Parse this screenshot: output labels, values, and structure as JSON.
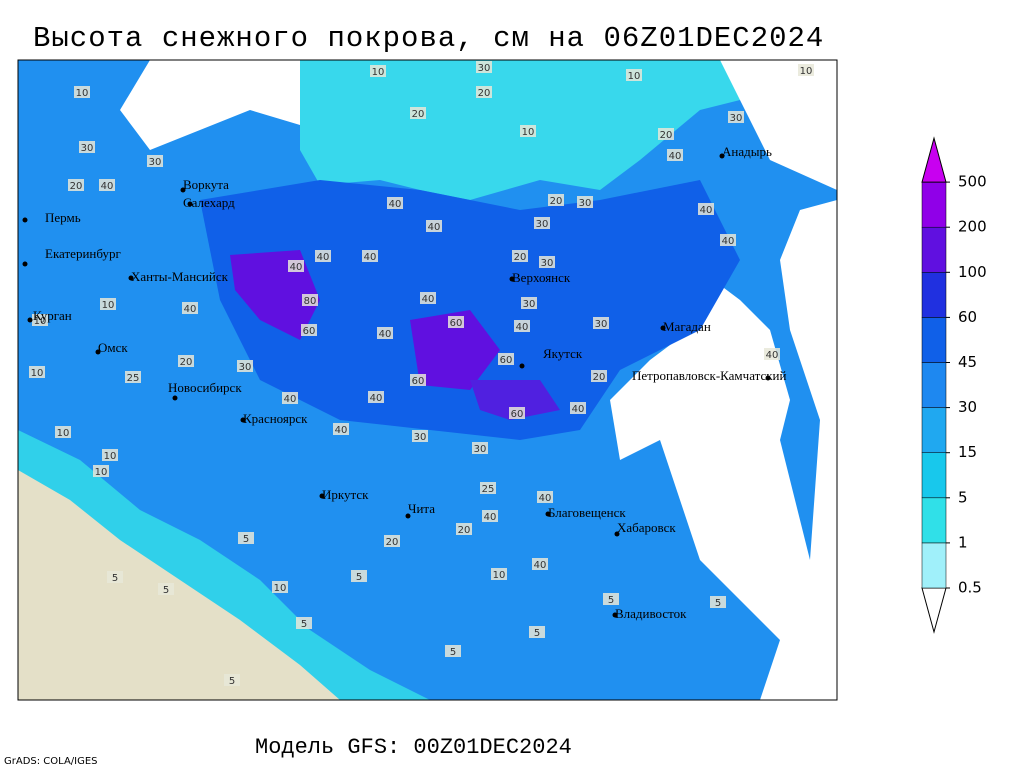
{
  "title": "Высота снежного покрова, см на 06Z01DEC2024",
  "footer": "Модель GFS: 00Z01DEC2024",
  "credit": "GrADS: COLA/IGES",
  "colorbar": {
    "levels": [
      0.5,
      1,
      5,
      15,
      30,
      45,
      60,
      100,
      200,
      500
    ],
    "colors": [
      "#ffffff",
      "#a0f0fa",
      "#30e0e8",
      "#18c8ec",
      "#20a8f0",
      "#1e88f0",
      "#1060e8",
      "#2030e0",
      "#6010e0",
      "#9000e8",
      "#c800f0"
    ]
  },
  "cities": [
    "Пермь",
    "Екатеринбург",
    "Курган",
    "Омск",
    "Новосибирск",
    "Красноярск",
    "Иркутск",
    "Чита",
    "Благовещенск",
    "Хабаровск",
    "Владивосток",
    "Якутск",
    "Верхоянск",
    "Магадан",
    "Петропавловск-Камчатский",
    "Анадырь",
    "Ханты-Мансийск",
    "Воркута",
    "Салехард"
  ],
  "contour_labels": [
    10,
    30,
    10,
    10,
    10,
    20,
    20,
    10,
    20,
    40,
    30,
    30,
    30,
    40,
    20,
    40,
    30,
    20,
    30,
    40,
    40,
    40,
    40,
    80,
    60,
    40,
    20,
    30,
    30,
    60,
    40,
    40,
    60,
    60,
    40,
    60,
    40,
    20,
    30,
    40,
    40,
    40,
    40,
    20,
    25,
    10,
    10,
    10,
    10,
    10,
    10,
    30,
    40,
    40,
    30,
    30,
    25,
    40,
    40,
    40,
    10,
    10,
    5,
    5,
    5,
    5,
    5,
    5,
    5,
    5,
    5,
    20,
    20,
    5
  ]
}
